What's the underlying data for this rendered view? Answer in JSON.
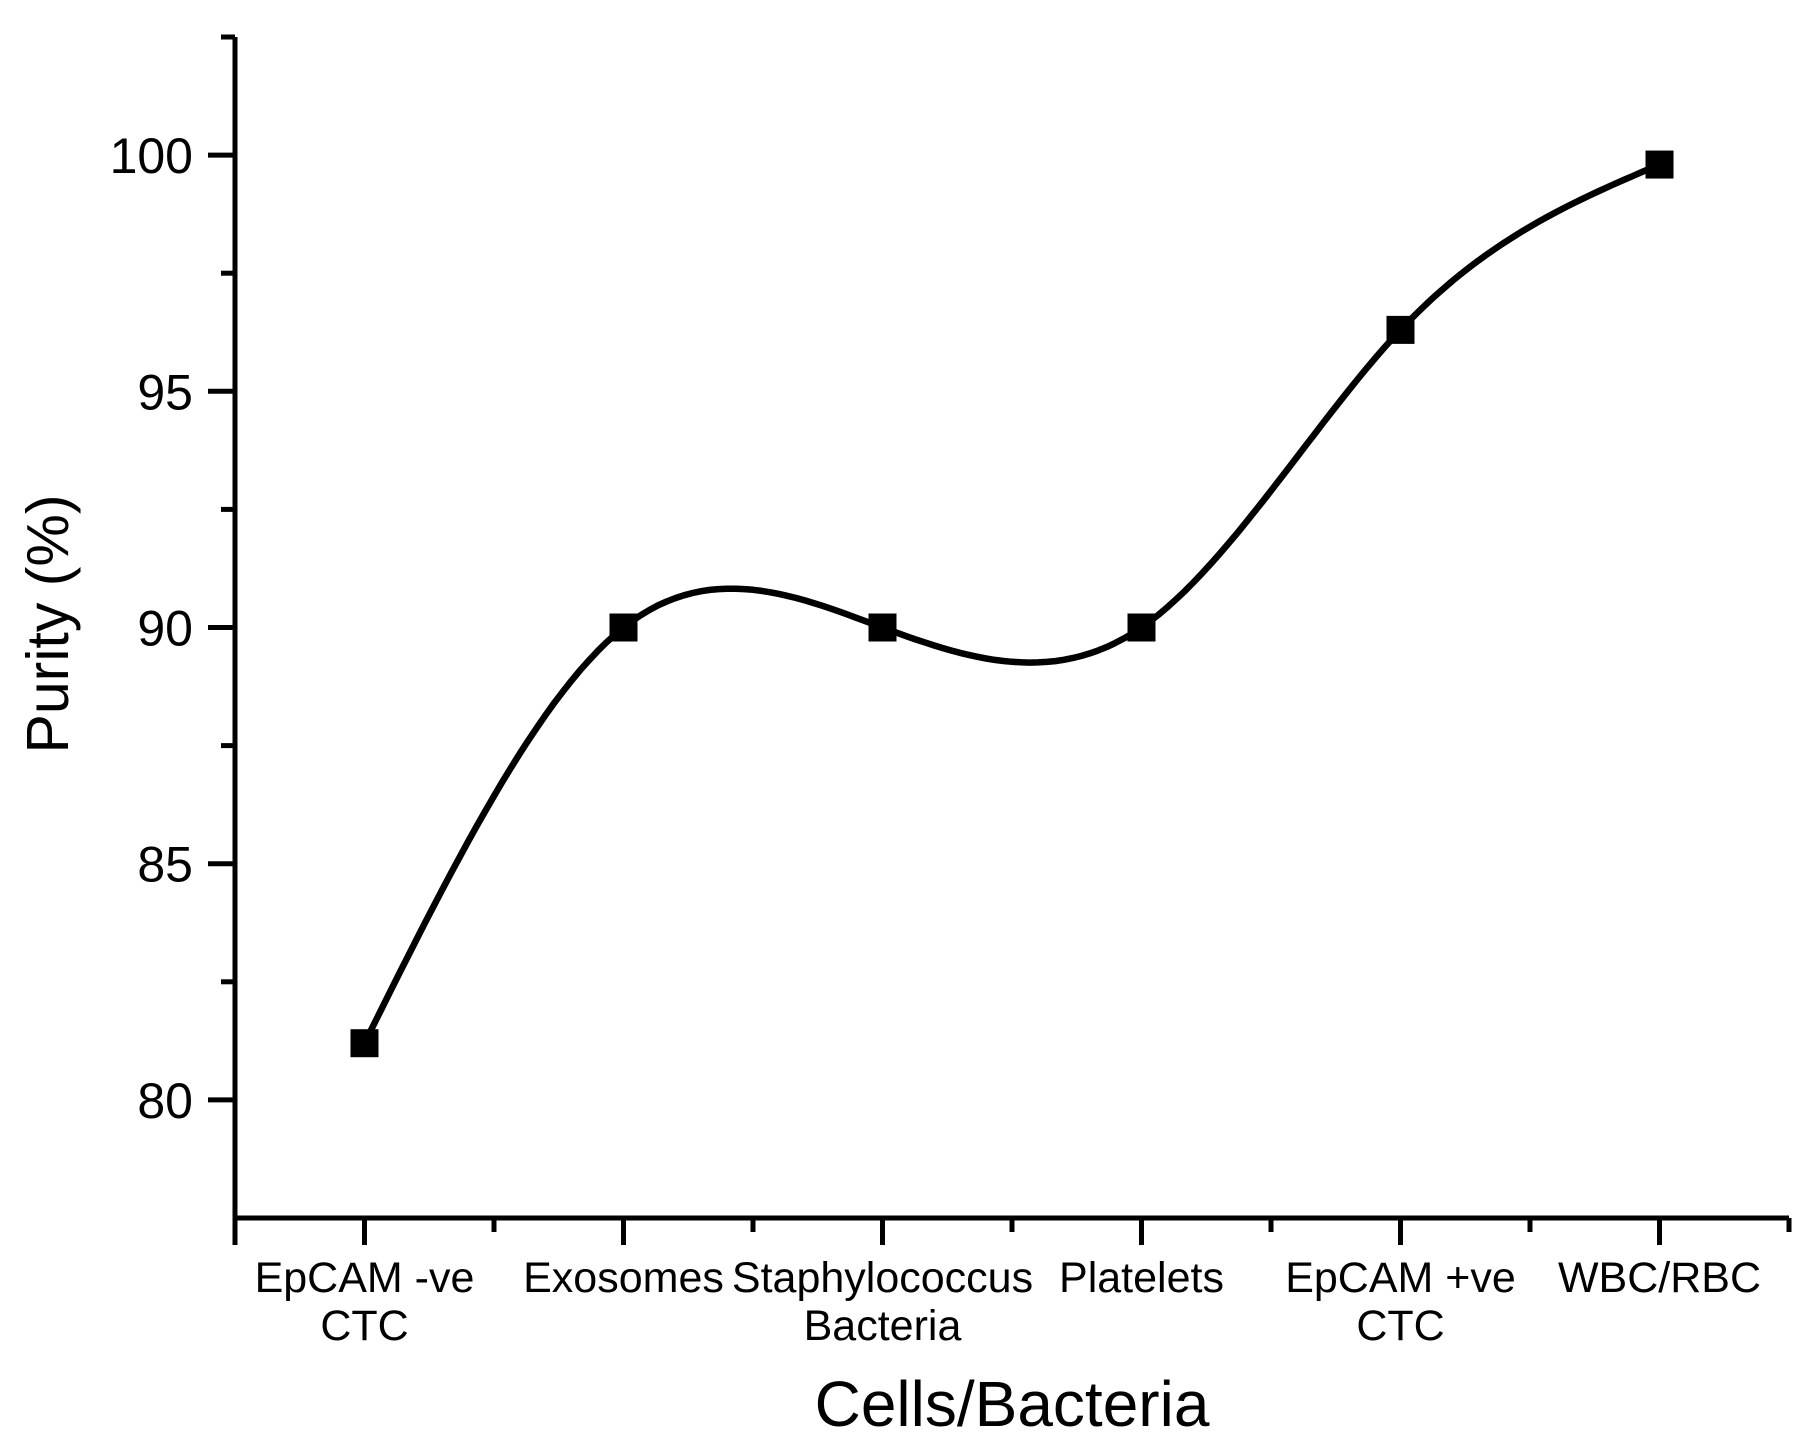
{
  "chart_data": {
    "type": "line",
    "title": "",
    "xlabel": "Cells/Bacteria",
    "ylabel": "Purity (%)",
    "categories": [
      "EpCAM -ve CTC",
      "Exosomes",
      "Staphylococcus Bacteria",
      "Platelets",
      "EpCAM +ve CTC",
      "WBC/RBC"
    ],
    "category_label_lines": [
      [
        "EpCAM -ve",
        "CTC"
      ],
      [
        "Exosomes"
      ],
      [
        "Staphylococcus",
        "Bacteria"
      ],
      [
        "Platelets"
      ],
      [
        "EpCAM +ve",
        "CTC"
      ],
      [
        "WBC/RBC"
      ]
    ],
    "series": [
      {
        "name": "Purity",
        "values": [
          81.2,
          90.0,
          90.0,
          90.0,
          96.3,
          99.8
        ]
      }
    ],
    "ylim": [
      77.5,
      102.5
    ],
    "yticks": [
      80,
      85,
      90,
      95,
      100
    ],
    "yticks_minor": [
      82.5,
      87.5,
      92.5,
      97.5,
      102.5
    ],
    "line": {
      "color": "#000000",
      "width": 6.5,
      "smoothing": "natural-cubic-spline"
    },
    "marker": {
      "shape": "square",
      "size": 28,
      "color": "#000000"
    },
    "axis_color": "#000000",
    "background": "#ffffff",
    "grid": false,
    "legend": null
  }
}
